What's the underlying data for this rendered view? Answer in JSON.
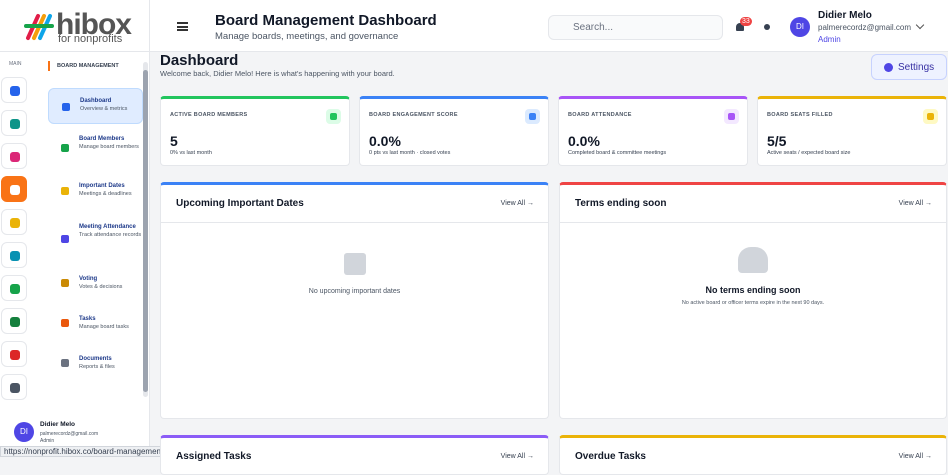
{
  "brand": {
    "name": "hibox",
    "tagline": "for nonprofits"
  },
  "header": {
    "title": "Board Management Dashboard",
    "subtitle": "Manage boards, meetings, and governance",
    "search_placeholder": "Search...",
    "notification_count": "33",
    "user": {
      "initials": "DI",
      "name": "Didier Melo",
      "email": "palmerecordz@gmail.com",
      "role": "Admin"
    }
  },
  "sidebar": {
    "rail_label": "MAIN",
    "section": "BOARD MANAGEMENT",
    "items": [
      {
        "title": "Dashboard",
        "subtitle": "Overview & metrics"
      },
      {
        "title": "Board Members",
        "subtitle": "Manage board members"
      },
      {
        "title": "Important Dates",
        "subtitle": "Meetings & deadlines"
      },
      {
        "title": "Meeting Attendance",
        "subtitle": "Track attendance records"
      },
      {
        "title": "Voting",
        "subtitle": "Votes & decisions"
      },
      {
        "title": "Tasks",
        "subtitle": "Manage board tasks"
      },
      {
        "title": "Documents",
        "subtitle": "Reports & files"
      }
    ],
    "footer_user": {
      "initials": "DI",
      "name": "Didier Melo",
      "email": "palmerecordz@gmail.com",
      "role": "Admin"
    }
  },
  "status_url": "https://nonprofit.hibox.co/board-management/settings",
  "page": {
    "title": "Dashboard",
    "subtitle": "Welcome back, Didier Melo! Here is what's happening with your board.",
    "settings_button": "Settings"
  },
  "stats": [
    {
      "label": "ACTIVE BOARD MEMBERS",
      "value": "5",
      "note": "0% vs last month"
    },
    {
      "label": "BOARD ENGAGEMENT SCORE",
      "value": "0.0%",
      "note": "0 pts vs last month · closed votes"
    },
    {
      "label": "BOARD ATTENDANCE",
      "value": "0.0%",
      "note": "Completed board & committee meetings"
    },
    {
      "label": "BOARD SEATS FILLED",
      "value": "5/5",
      "note": "Active seats / expected board size"
    }
  ],
  "panels": [
    {
      "title": "Upcoming Important Dates",
      "link": "View All →",
      "empty": "No upcoming important dates"
    },
    {
      "title": "Terms ending soon",
      "link": "View All →",
      "empty_title": "No terms ending soon",
      "empty": "No active board or officer terms expire in the next 90 days."
    },
    {
      "title": "Assigned Tasks",
      "link": "View All →"
    },
    {
      "title": "Overdue Tasks",
      "link": "View All →"
    }
  ]
}
